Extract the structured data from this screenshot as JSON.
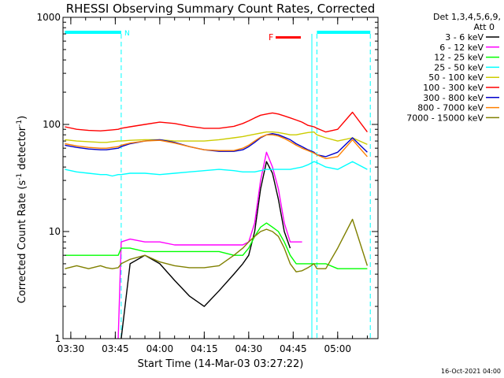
{
  "chart_data": {
    "type": "line",
    "title": "RHESSI Observing Summary Count Rates, Corrected",
    "ylabel_parts": [
      "Corrected Count Rate (s",
      "-1",
      " detector",
      "-1",
      ")"
    ],
    "xlabel": "Start Time (14-Mar-03 03:27:22)",
    "footer": "16-Oct-2021 04:00",
    "x_tick_labels": [
      "03:30",
      "03:45",
      "04:00",
      "04:15",
      "04:30",
      "04:45",
      "05:00"
    ],
    "x_tick_values": [
      30,
      45,
      60,
      75,
      90,
      105,
      120
    ],
    "xlim": [
      27.37,
      133.6
    ],
    "y_scale": "log",
    "ylim": [
      1,
      1000
    ],
    "y_tick_labels": [
      "1",
      "10",
      "100",
      "1000"
    ],
    "y_tick_values": [
      1,
      10,
      100,
      1000
    ],
    "legend": {
      "header": [
        "Det 1,3,4,5,6,9,",
        "Att 0"
      ],
      "placement": "right"
    },
    "annotations": [
      {
        "label": "N",
        "color": "#00ffff",
        "x_range": [
          28,
          47
        ]
      },
      {
        "label": "F",
        "color": "#ff0000",
        "x_range": [
          97,
          103
        ]
      }
    ],
    "night_bars": [
      [
        28,
        47
      ],
      [
        113,
        131
      ]
    ],
    "night_boundaries": [
      47,
      113,
      131
    ],
    "series": [
      {
        "name": "3 - 6 keV",
        "color": "#000000",
        "x": [
          28,
          32,
          36,
          40,
          42,
          44,
          46,
          47,
          50,
          55,
          60,
          65,
          70,
          75,
          80,
          85,
          88,
          90,
          92,
          94,
          96,
          98,
          100,
          102,
          104,
          106,
          108,
          110,
          112,
          113,
          116,
          120,
          125,
          130
        ],
        "y": [
          null,
          null,
          null,
          null,
          null,
          null,
          null,
          1,
          5,
          6,
          5,
          3.5,
          2.5,
          2,
          2.8,
          4,
          5,
          6,
          10,
          25,
          45,
          35,
          20,
          10,
          7,
          null,
          null,
          null,
          null,
          null,
          null,
          null,
          null,
          null
        ]
      },
      {
        "name": "6 - 12 keV",
        "color": "#ff00ff",
        "x": [
          28,
          32,
          36,
          40,
          42,
          44,
          46,
          47,
          50,
          55,
          60,
          65,
          70,
          75,
          80,
          85,
          88,
          90,
          92,
          94,
          96,
          98,
          100,
          102,
          104,
          106,
          108,
          110,
          112,
          113,
          116,
          120,
          125,
          130
        ],
        "y": [
          null,
          null,
          null,
          null,
          null,
          null,
          1,
          8,
          8.5,
          8,
          8,
          7.5,
          7.5,
          7.5,
          7.5,
          7.5,
          7.5,
          8,
          12,
          30,
          55,
          40,
          25,
          12,
          8,
          8,
          8,
          null,
          null,
          null,
          null,
          null,
          null,
          null
        ]
      },
      {
        "name": "12 - 25 keV",
        "color": "#00ff00",
        "x": [
          28,
          32,
          36,
          40,
          42,
          44,
          46,
          47,
          50,
          55,
          60,
          65,
          70,
          75,
          80,
          85,
          88,
          90,
          92,
          94,
          96,
          98,
          100,
          102,
          104,
          106,
          108,
          110,
          112,
          113,
          116,
          120,
          125,
          130
        ],
        "y": [
          6,
          6,
          6,
          6,
          6,
          6,
          6,
          7,
          7,
          6.5,
          6.5,
          6.5,
          6.5,
          6.5,
          6.5,
          6,
          6,
          7,
          9,
          11,
          12,
          11,
          10,
          8,
          6,
          5,
          5,
          5,
          5,
          5,
          5,
          4.5,
          4.5,
          4.5
        ]
      },
      {
        "name": "25 - 50 keV",
        "color": "#00ffff",
        "x": [
          28,
          32,
          36,
          40,
          42,
          44,
          46,
          47,
          50,
          55,
          60,
          65,
          70,
          75,
          80,
          85,
          88,
          90,
          92,
          94,
          96,
          98,
          100,
          102,
          104,
          106,
          108,
          110,
          112,
          113,
          116,
          120,
          125,
          130
        ],
        "y": [
          38,
          36,
          35,
          34,
          34,
          33,
          34,
          34,
          35,
          35,
          34,
          35,
          36,
          37,
          38,
          37,
          36,
          36,
          36,
          37,
          38,
          38,
          38,
          38,
          38,
          39,
          40,
          42,
          45,
          44,
          40,
          38,
          45,
          38
        ]
      },
      {
        "name": "50 - 100 keV",
        "color": "#cccc00",
        "x": [
          28,
          32,
          36,
          40,
          42,
          44,
          46,
          47,
          50,
          55,
          60,
          65,
          70,
          75,
          80,
          85,
          88,
          90,
          92,
          94,
          96,
          98,
          100,
          102,
          104,
          106,
          108,
          110,
          112,
          113,
          116,
          120,
          125,
          130
        ],
        "y": [
          72,
          70,
          69,
          68,
          68,
          69,
          70,
          70,
          71,
          72,
          72,
          70,
          70,
          70,
          72,
          75,
          77,
          79,
          81,
          83,
          85,
          85,
          84,
          82,
          80,
          80,
          82,
          84,
          85,
          80,
          75,
          70,
          75,
          65
        ]
      },
      {
        "name": "100 - 300 keV",
        "color": "#ff0000",
        "x": [
          28,
          32,
          36,
          40,
          42,
          44,
          46,
          47,
          50,
          55,
          60,
          65,
          70,
          75,
          80,
          85,
          88,
          90,
          92,
          94,
          96,
          98,
          100,
          102,
          104,
          106,
          108,
          110,
          112,
          113,
          116,
          120,
          125,
          130
        ],
        "y": [
          95,
          90,
          88,
          87,
          88,
          89,
          90,
          92,
          95,
          100,
          105,
          102,
          96,
          92,
          92,
          96,
          102,
          108,
          115,
          122,
          125,
          128,
          125,
          120,
          115,
          110,
          105,
          98,
          95,
          92,
          85,
          90,
          130,
          85
        ]
      },
      {
        "name": "300 - 800 keV",
        "color": "#0000cc",
        "x": [
          28,
          32,
          36,
          40,
          42,
          44,
          46,
          47,
          50,
          55,
          60,
          65,
          70,
          75,
          80,
          85,
          88,
          90,
          92,
          94,
          96,
          98,
          100,
          102,
          104,
          106,
          108,
          110,
          112,
          113,
          116,
          120,
          125,
          130
        ],
        "y": [
          64,
          61,
          59,
          58,
          58,
          59,
          60,
          62,
          66,
          70,
          72,
          68,
          62,
          58,
          56,
          56,
          58,
          62,
          68,
          75,
          80,
          82,
          80,
          76,
          72,
          66,
          62,
          58,
          55,
          52,
          50,
          55,
          75,
          55
        ]
      },
      {
        "name": "800 - 7000 keV",
        "color": "#ff8000",
        "x": [
          28,
          32,
          36,
          40,
          42,
          44,
          46,
          47,
          50,
          55,
          60,
          65,
          70,
          75,
          80,
          85,
          88,
          90,
          92,
          94,
          96,
          98,
          100,
          102,
          104,
          106,
          108,
          110,
          112,
          113,
          116,
          120,
          125,
          130
        ],
        "y": [
          66,
          63,
          61,
          60,
          60,
          61,
          62,
          64,
          67,
          70,
          71,
          67,
          62,
          58,
          57,
          57,
          60,
          64,
          70,
          76,
          80,
          80,
          78,
          74,
          69,
          64,
          60,
          57,
          54,
          52,
          48,
          50,
          72,
          50
        ]
      },
      {
        "name": "7000 - 15000 keV",
        "color": "#808000",
        "x": [
          28,
          32,
          36,
          40,
          42,
          44,
          46,
          47,
          50,
          55,
          60,
          65,
          70,
          75,
          80,
          85,
          88,
          90,
          92,
          94,
          96,
          98,
          100,
          102,
          104,
          106,
          108,
          110,
          112,
          113,
          116,
          120,
          125,
          130
        ],
        "y": [
          4.5,
          4.8,
          4.5,
          4.8,
          4.6,
          4.5,
          4.6,
          5,
          5.5,
          6,
          5.2,
          4.8,
          4.6,
          4.6,
          4.8,
          6,
          7,
          8,
          9,
          10,
          10.5,
          10,
          9,
          7,
          5,
          4.2,
          4.3,
          4.6,
          5,
          4.5,
          4.5,
          7,
          13,
          4.8
        ]
      }
    ]
  }
}
